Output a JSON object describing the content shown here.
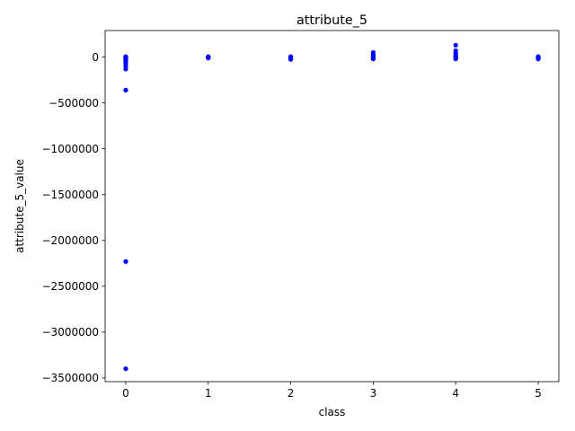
{
  "chart_data": {
    "type": "scatter",
    "title": "attribute_5",
    "xlabel": "class",
    "ylabel": "attribute_5_value",
    "xlim": [
      -0.25,
      5.25
    ],
    "ylim": [
      -3540000,
      290000
    ],
    "x_ticks": [
      0,
      1,
      2,
      3,
      4,
      5
    ],
    "x_tick_labels": [
      "0",
      "1",
      "2",
      "3",
      "4",
      "5"
    ],
    "y_ticks": [
      0,
      -500000,
      -1000000,
      -1500000,
      -2000000,
      -2500000,
      -3000000,
      -3500000
    ],
    "y_tick_labels": [
      "0",
      "−500000",
      "−1000000",
      "−1500000",
      "−2000000",
      "−2500000",
      "−3000000",
      "−3500000"
    ],
    "marker_color": "#0000ff",
    "grid": false,
    "legend": "none",
    "series": [
      {
        "points": [
          [
            0,
            5000
          ],
          [
            0,
            0
          ],
          [
            0,
            -5000
          ],
          [
            0,
            -10000
          ],
          [
            0,
            -15000
          ],
          [
            0,
            -20000
          ],
          [
            0,
            -30000
          ],
          [
            0,
            -40000
          ],
          [
            0,
            -50000
          ],
          [
            0,
            -70000
          ],
          [
            0,
            -100000
          ],
          [
            0,
            -130000
          ],
          [
            0,
            -360000
          ],
          [
            0,
            -2230000
          ],
          [
            0,
            -3400000
          ],
          [
            1,
            5000
          ],
          [
            1,
            0
          ],
          [
            1,
            -5000
          ],
          [
            1,
            -10000
          ],
          [
            2,
            5000
          ],
          [
            2,
            0
          ],
          [
            2,
            -5000
          ],
          [
            2,
            -10000
          ],
          [
            2,
            -15000
          ],
          [
            2,
            -25000
          ],
          [
            3,
            50000
          ],
          [
            3,
            30000
          ],
          [
            3,
            15000
          ],
          [
            3,
            5000
          ],
          [
            3,
            0
          ],
          [
            3,
            -10000
          ],
          [
            3,
            -20000
          ],
          [
            4,
            130000
          ],
          [
            4,
            70000
          ],
          [
            4,
            45000
          ],
          [
            4,
            25000
          ],
          [
            4,
            10000
          ],
          [
            4,
            0
          ],
          [
            4,
            -10000
          ],
          [
            4,
            -20000
          ],
          [
            5,
            5000
          ],
          [
            5,
            0
          ],
          [
            5,
            -5000
          ],
          [
            5,
            -10000
          ],
          [
            5,
            -20000
          ]
        ]
      }
    ]
  }
}
